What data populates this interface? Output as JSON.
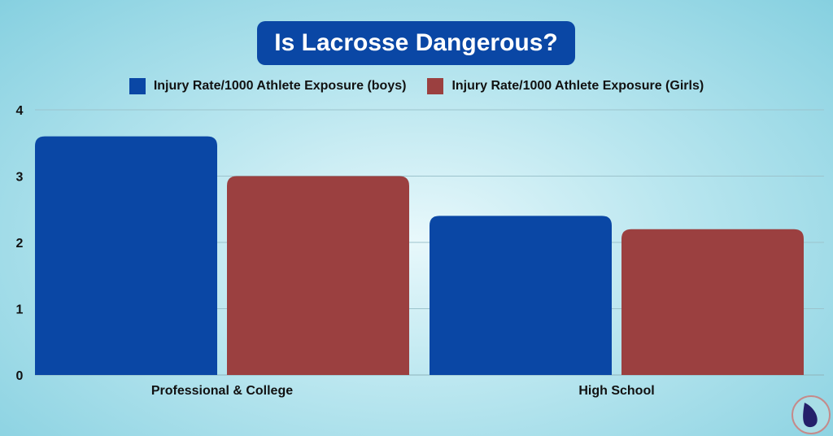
{
  "chart_data": {
    "type": "bar",
    "title": "Is Lacrosse Dangerous?",
    "categories": [
      "Professional & College",
      "High School"
    ],
    "series": [
      {
        "name": "Injury Rate/1000 Athlete Exposure (boys)",
        "values": [
          3.6,
          2.4
        ],
        "color": "#0a47a5"
      },
      {
        "name": "Injury Rate/1000 Athlete Exposure (Girls)",
        "values": [
          3.0,
          2.2
        ],
        "color": "#9b4040"
      }
    ],
    "yticks": [
      "0",
      "1",
      "2",
      "3",
      "4"
    ],
    "ylim": [
      0,
      4
    ],
    "grid": true,
    "legend": "top-center"
  },
  "logo": {
    "icon": "drop-logo-icon"
  }
}
